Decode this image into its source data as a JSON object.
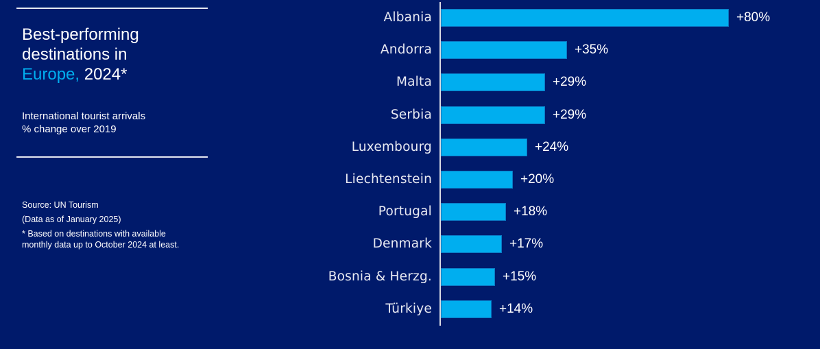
{
  "header": {
    "title_line1": "Best-performing",
    "title_line2": "destinations in",
    "title_accent": "Europe,",
    "title_year": "2024*",
    "subtitle_line1": "International tourist arrivals",
    "subtitle_line2": "% change over 2019"
  },
  "footer": {
    "source": "Source: UN Tourism",
    "data_date": "(Data as of January 2025)",
    "note_line1": "* Based on destinations with available",
    "note_line2": "monthly data up to October 2024 at least."
  },
  "colors": {
    "background": "#001a6b",
    "bar": "#00aeef",
    "accent": "#00aeef",
    "text": "#ffffff"
  },
  "chart_data": {
    "type": "bar",
    "orientation": "horizontal",
    "title": "Best-performing destinations in Europe, 2024*",
    "subtitle": "International tourist arrivals % change over 2019",
    "xlabel": "",
    "ylabel": "",
    "categories": [
      "Albania",
      "Andorra",
      "Malta",
      "Serbia",
      "Luxembourg",
      "Liechtenstein",
      "Portugal",
      "Denmark",
      "Bosnia & Herzg.",
      "Türkiye"
    ],
    "values": [
      80,
      35,
      29,
      29,
      24,
      20,
      18,
      17,
      15,
      14
    ],
    "value_labels": [
      "+80%",
      "+35%",
      "+29%",
      "+29%",
      "+24%",
      "+20%",
      "+18%",
      "+17%",
      "+15%",
      "+14%"
    ],
    "unit": "%",
    "xlim": [
      0,
      80
    ],
    "grid": false,
    "legend": null,
    "data_labels": true
  }
}
